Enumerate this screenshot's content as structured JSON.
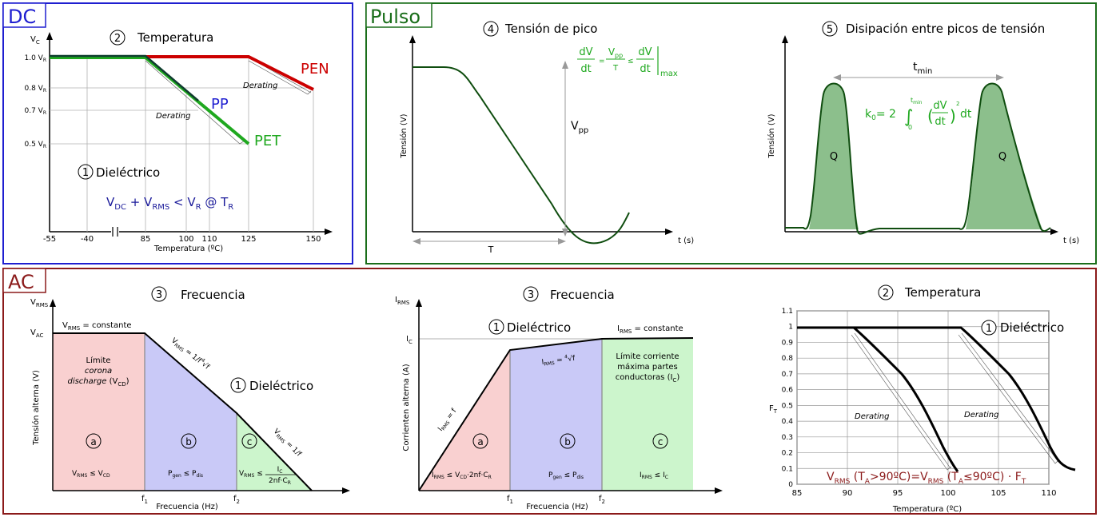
{
  "dc": {
    "tag": "DC",
    "title_num": "2",
    "title": "Temperatura",
    "y_axis_label": "V",
    "y_axis_sub": "C",
    "y_ticks": [
      {
        "main": "1.0 V",
        "sub": "R"
      },
      {
        "main": "0.8 V",
        "sub": "R"
      },
      {
        "main": "0.7 V",
        "sub": "R"
      },
      {
        "main": "0.5 V",
        "sub": "R"
      }
    ],
    "x_ticks": [
      "-55",
      "-40",
      "85",
      "100",
      "110",
      "125",
      "150"
    ],
    "x_label": "Temperatura (ºC)",
    "pen": "PEN",
    "pp": "PP",
    "pet": "PET",
    "derating": "Derating",
    "dielectric_num": "1",
    "dielectric": "Dieléctrico",
    "formula": {
      "v1": "V",
      "s1": "DC",
      "op1": " + V",
      "s2": "RMS",
      "op2": " < V",
      "s3": "R",
      "op3": " @ T",
      "s4": "R"
    },
    "colors": {
      "border": "#1f1fd0",
      "pen": "#cc0000",
      "pet": "#1fa81f",
      "pp": "#1f1fd0",
      "text_blue": "#1a1a9a"
    }
  },
  "pulse": {
    "tag": "Pulso",
    "peak_num": "4",
    "peak_title": "Tensión de pico",
    "dissip_num": "5",
    "dissip_title": "Disipación entre picos de tensión",
    "y_label": "Tensión (V)",
    "x_label": "t (s)",
    "vpp": "V",
    "vpp_sub": "pp",
    "t": "T",
    "tmin": "t",
    "tmin_sub": "min",
    "q": "Q",
    "eq1": {
      "dv": "dV",
      "dt": "dt",
      "eq": "=",
      "vpp": "V",
      "vpp_sub": "pp",
      "t": "T",
      "le": "≤",
      "max": "max"
    },
    "eq2": {
      "k": "k",
      "k_sub": "0",
      "eq": "= 2",
      "upper": "t",
      "upper_sub": "min",
      "lower": "0",
      "dv": "dV",
      "dt": "dt",
      "pow": "2",
      "tail": "dt"
    },
    "colors": {
      "border": "#1a6e1a",
      "curve": "#0f4d0f",
      "fill": "#8cbf8c",
      "eq": "#1fa81f"
    }
  },
  "ac": {
    "tag": "AC",
    "left": {
      "title_num": "3",
      "title": "Frecuencia",
      "y_top": "V",
      "y_top_sub": "RMS",
      "vac": "V",
      "vac_sub": "AC",
      "y_label": "Tensión alterna (V)",
      "x_label": "Frecuencia (Hz)",
      "f1": "f",
      "f1_sub": "1",
      "f2": "f",
      "f2_sub": "2",
      "const": "V",
      "const_sub": "RMS",
      "const_tail": " = constante",
      "limit1": "Límite",
      "limit2": "corona",
      "limit3": "discharge",
      "limit4": "(V",
      "limit4_sub": "CD",
      "limit4_end": ")",
      "diel_num": "1",
      "diel": "Dieléctrico",
      "a": "a",
      "b": "b",
      "c": "c",
      "cond_a": {
        "v": "V",
        "s": "RMS",
        "op": " ≤ V",
        "s2": "CD"
      },
      "cond_b": {
        "v": "P",
        "s": "gen",
        "op": " ≤ P",
        "s2": "dis"
      },
      "cond_c": {
        "v": "V",
        "s": "RMS",
        "op": " ≤ ",
        "num": "I",
        "num_sub": "C",
        "den": "2nf·C",
        "den_sub": "R"
      },
      "slope1": {
        "v": "V",
        "s": "RMS",
        "eq": " = ",
        "frac_n": "1",
        "frac_d": "f",
        "root": "√f",
        "root_idx": "4"
      },
      "slope2": {
        "v": "V",
        "s": "RMS",
        "eq": " = ",
        "frac_n": "1",
        "frac_d": "f"
      }
    },
    "mid": {
      "title_num": "3",
      "title": "Frecuencia",
      "y_top": "I",
      "y_top_sub": "RMS",
      "ic": "I",
      "ic_sub": "C",
      "y_label": "Corrienten alterna (A)",
      "x_label": "Frecuencia (Hz)",
      "f1": "f",
      "f1_sub": "1",
      "f2": "f",
      "f2_sub": "2",
      "const": "I",
      "const_sub": "RMS",
      "const_tail": " = constante",
      "diel_num": "1",
      "diel": "Dieléctrico",
      "limit1": "Límite corriente",
      "limit2": "máxima partes",
      "limit3": "conductoras (I",
      "limit3_sub": "C",
      "limit3_end": ")",
      "a": "a",
      "b": "b",
      "c": "c",
      "cond_a": {
        "v": "I",
        "s": "RMS",
        "op": " ≤ V",
        "s2": "CD",
        "tail": "·2nf·C",
        "s3": "R"
      },
      "cond_b": {
        "v": "P",
        "s": "gen",
        "op": " ≤ P",
        "s2": "dis"
      },
      "cond_c": {
        "v": "I",
        "s": "RMS",
        "op": " ≤ I",
        "s2": "C"
      },
      "slope1": {
        "v": "I",
        "s": "RMS",
        "eq": " = f"
      },
      "slope2": {
        "v": "I",
        "s": "RMS",
        "eq": " = ",
        "root": "√f",
        "root_idx": "4"
      }
    },
    "right": {
      "title_num": "2",
      "title": "Temperatura",
      "diel_num": "1",
      "diel": "Dieléctrico",
      "y_label": "F",
      "y_label_sub": "T",
      "x_label": "Temperatura (ºC)",
      "y_ticks": [
        "1.1",
        "1",
        "0.9",
        "0.8",
        "0.7",
        "0.6",
        "0.5",
        "0.4",
        "0.3",
        "0.2",
        "0.1",
        "0"
      ],
      "x_ticks": [
        "85",
        "90",
        "95",
        "100",
        "105",
        "110"
      ],
      "derating": "Derating",
      "formula": {
        "a": "V",
        "as": "RMS",
        "b": " (T",
        "bs": "A",
        "c": ">90ºC)=V",
        "cs": "RMS",
        "d": " (T",
        "ds": "A",
        "e": "≤90ºC) · F",
        "es": "T"
      }
    },
    "colors": {
      "border": "#8b1a1a",
      "red_fill": "#f9d0d0",
      "blue_fill": "#c9c9f7",
      "green_fill": "#ccf5cc",
      "formula": "#8b1a1a"
    }
  }
}
